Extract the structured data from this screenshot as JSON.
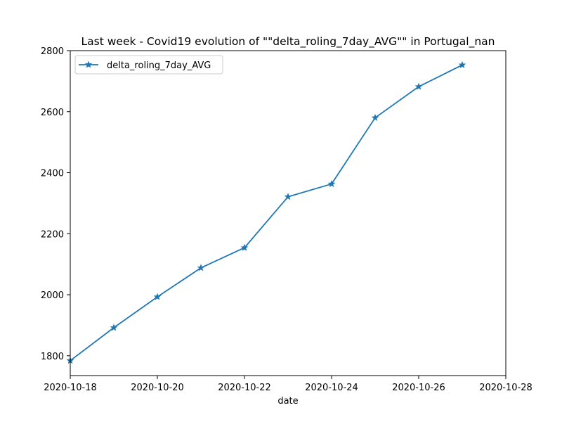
{
  "chart_data": {
    "type": "line",
    "title": "Last week - Covid19 evolution of  \"\"delta_roling_7day_AVG\"\"  in Portugal_nan",
    "xlabel": "date",
    "ylabel": "",
    "xlim": [
      "2020-10-18",
      "2020-10-28"
    ],
    "ylim": [
      1735,
      2800
    ],
    "x_ticks": [
      "2020-10-18",
      "2020-10-20",
      "2020-10-22",
      "2020-10-24",
      "2020-10-26",
      "2020-10-28"
    ],
    "y_ticks": [
      1800,
      2000,
      2200,
      2400,
      2600,
      2800
    ],
    "grid": false,
    "legend_position": "top-left",
    "series": [
      {
        "name": "delta_roling_7day_AVG",
        "color": "#1f77b4",
        "marker": "star",
        "x": [
          "2020-10-18",
          "2020-10-19",
          "2020-10-20",
          "2020-10-21",
          "2020-10-22",
          "2020-10-23",
          "2020-10-24",
          "2020-10-25",
          "2020-10-26",
          "2020-10-27"
        ],
        "values": [
          1784,
          1892,
          1993,
          2088,
          2154,
          2321,
          2363,
          2580,
          2682,
          2753
        ]
      }
    ]
  }
}
